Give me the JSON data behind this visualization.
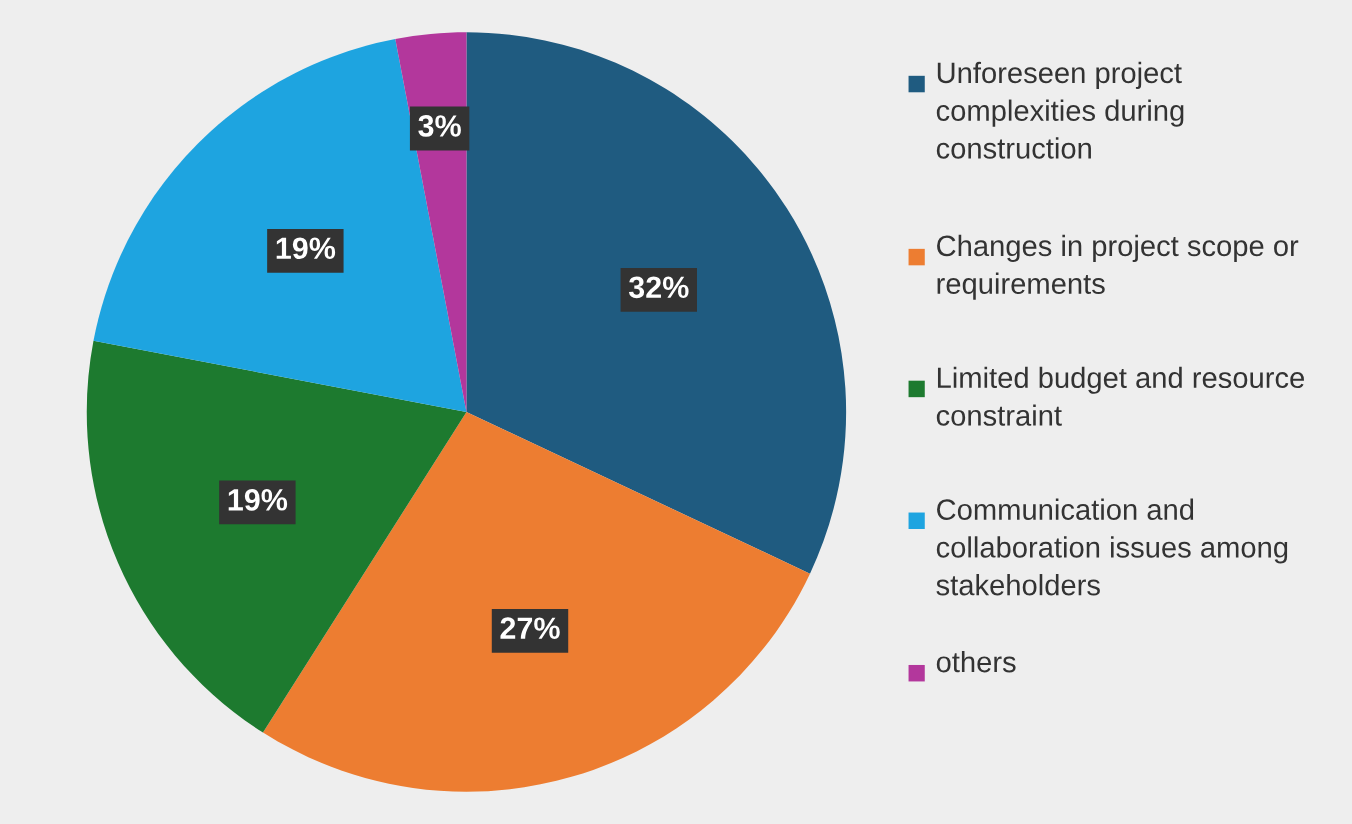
{
  "chart_data": {
    "type": "pie",
    "categories": [
      "Unforeseen project complexities during construction",
      "Changes in project scope or requirements",
      "Limited budget and resource constraint",
      "Communication and collaboration issues among stakeholders",
      "others"
    ],
    "values": [
      32,
      27,
      19,
      19,
      3
    ],
    "colors": [
      "#1f5b80",
      "#ed7d31",
      "#1d7a2f",
      "#1ea4e0",
      "#b3379c"
    ],
    "value_labels": [
      "32%",
      "27%",
      "19%",
      "19%",
      "3%"
    ],
    "legend": "right"
  }
}
